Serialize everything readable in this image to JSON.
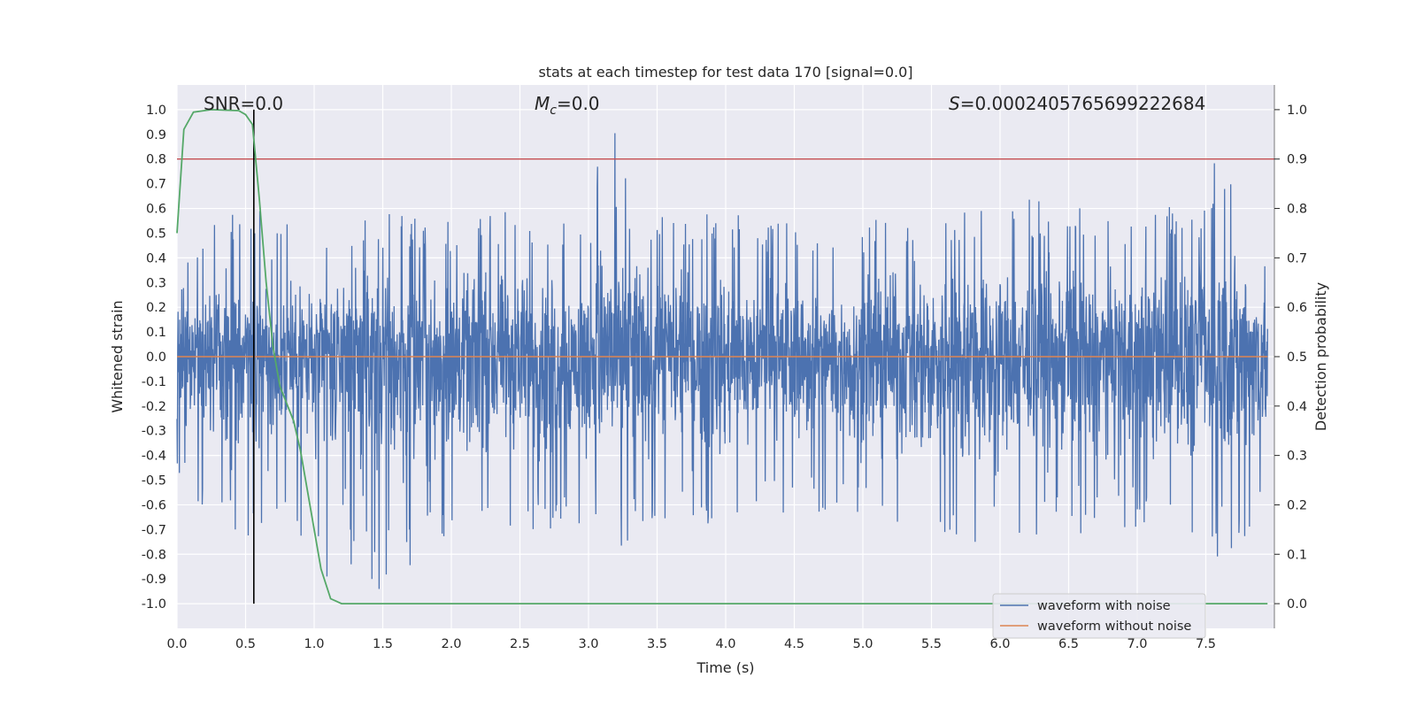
{
  "chart_data": {
    "type": "line",
    "title": "stats at each timestep for test data 170 [signal=0.0]",
    "xlabel": "Time (s)",
    "ylabel_left": "Whitened strain",
    "ylabel_right": "Detection probability",
    "xlim": [
      0.0,
      8.0
    ],
    "ylim_left": [
      -1.1,
      1.1
    ],
    "ylim_right": [
      -0.05,
      1.05
    ],
    "x_ticks": [
      "0.0",
      "0.5",
      "1.0",
      "1.5",
      "2.0",
      "2.5",
      "3.0",
      "3.5",
      "4.0",
      "4.5",
      "5.0",
      "5.5",
      "6.0",
      "6.5",
      "7.0",
      "7.5"
    ],
    "y_left_ticks": [
      "1.0",
      "0.9",
      "0.8",
      "0.7",
      "0.6",
      "0.5",
      "0.4",
      "0.3",
      "0.2",
      "0.1",
      "0.0",
      "-0.1",
      "-0.2",
      "-0.3",
      "-0.4",
      "-0.5",
      "-0.6",
      "-0.7",
      "-0.8",
      "-0.9",
      "-1.0"
    ],
    "y_right_ticks": [
      "1.0",
      "0.9",
      "0.8",
      "0.7",
      "0.6",
      "0.5",
      "0.4",
      "0.3",
      "0.2",
      "0.1",
      "0.0"
    ],
    "grid": true,
    "legend_position": "lower-right",
    "annotations": {
      "snr": "SNR=0.0",
      "mc_symbol": "M",
      "mc_sub": "c",
      "mc_value": "=0.0",
      "s_symbol": "S",
      "s_value": "=0.0002405765699222684"
    },
    "series": [
      {
        "name": "waveform with noise",
        "color": "#4c72b0",
        "axis": "left",
        "envelope": {
          "x": [
            0.0,
            0.2,
            0.3,
            0.5,
            0.58,
            0.8,
            1.0,
            1.5,
            2.0,
            2.5,
            3.0,
            3.12,
            3.5,
            4.0,
            4.5,
            4.85,
            5.0,
            5.5,
            6.0,
            6.5,
            7.0,
            7.5,
            7.57,
            7.95
          ],
          "upper": [
            0.45,
            0.5,
            0.63,
            0.55,
            0.65,
            0.6,
            0.55,
            0.58,
            0.55,
            0.6,
            0.55,
            1.0,
            0.58,
            0.58,
            0.55,
            0.45,
            0.55,
            0.6,
            0.65,
            0.62,
            0.6,
            0.62,
            0.84,
            0.62
          ],
          "lower": [
            -0.55,
            -0.62,
            -0.75,
            -0.7,
            -0.8,
            -0.65,
            -0.9,
            -0.95,
            -0.7,
            -0.7,
            -0.72,
            -0.84,
            -0.68,
            -0.7,
            -0.62,
            -0.65,
            -0.7,
            -0.75,
            -0.8,
            -0.75,
            -0.7,
            -0.72,
            -0.82,
            -0.7
          ]
        }
      },
      {
        "name": "waveform without noise",
        "color": "#dd8452",
        "axis": "left",
        "x": [
          0.0,
          7.95
        ],
        "y": [
          0.0,
          0.0
        ]
      },
      {
        "name": "",
        "color": "#55a868",
        "axis": "right",
        "x": [
          0.0,
          0.05,
          0.12,
          0.25,
          0.45,
          0.5,
          0.55,
          0.6,
          0.65,
          0.7,
          0.75,
          0.85,
          0.9,
          0.95,
          1.0,
          1.05,
          1.12,
          1.2,
          1.5,
          3.0,
          5.0,
          7.95
        ],
        "y": [
          0.75,
          0.96,
          0.995,
          1.0,
          0.998,
          0.99,
          0.97,
          0.82,
          0.65,
          0.52,
          0.44,
          0.37,
          0.31,
          0.23,
          0.15,
          0.07,
          0.01,
          0.0,
          0.0,
          0.0,
          0.0,
          0.0
        ]
      }
    ],
    "threshold_line": {
      "color": "#c44e52",
      "axis": "right",
      "y": 0.9
    },
    "marker_line": {
      "color": "#000000",
      "x": 0.56,
      "y_right_range": [
        0.0,
        1.0
      ]
    }
  }
}
